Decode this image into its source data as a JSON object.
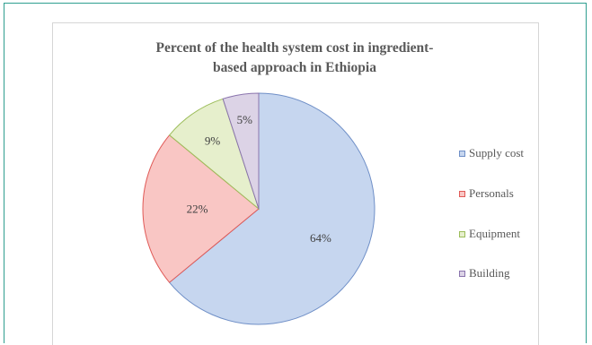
{
  "chart_data": {
    "type": "pie",
    "title": "Percent of the health system cost in ingredient-based approach in Ethiopia",
    "title_lines": [
      "Percent of the health system cost in ingredient-",
      "based approach in Ethiopia"
    ],
    "categories": [
      "Supply cost",
      "Personals",
      "Equipment",
      "Building"
    ],
    "values": [
      64,
      22,
      9,
      5
    ],
    "data_labels": [
      "64%",
      "22%",
      "9%",
      "5%"
    ],
    "colors": [
      "#c6d6ef",
      "#f9c6c4",
      "#e6efcc",
      "#dcd3e6"
    ],
    "border_colors": [
      "#6f8fc7",
      "#e05a57",
      "#9cbd5a",
      "#8a74ad"
    ],
    "legend_position": "right"
  }
}
